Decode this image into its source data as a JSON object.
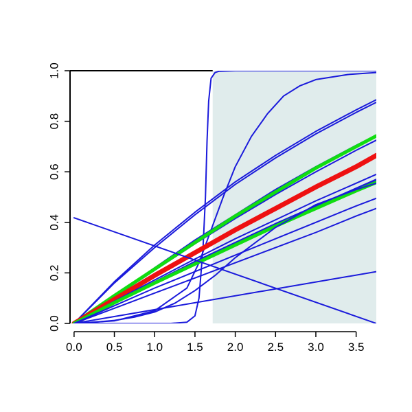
{
  "chart_data": {
    "type": "line",
    "title": "",
    "xlabel": "",
    "ylabel": "",
    "xlim": [
      -0.05,
      3.75
    ],
    "ylim": [
      0,
      1
    ],
    "x_ticks": [
      "0.0",
      "0.5",
      "1.0",
      "1.5",
      "2.0",
      "2.5",
      "3.0",
      "3.5"
    ],
    "y_ticks": [
      "0.0",
      "0.2",
      "0.4",
      "0.6",
      "0.8",
      "1.0"
    ],
    "shaded_region": {
      "x_from": 1.72,
      "x_to": 3.75,
      "color": "#e0ecec"
    },
    "colors": {
      "blue": "#1a1adb",
      "red": "#ee1111",
      "green": "#11dd11",
      "axis": "#000000"
    },
    "series": [
      {
        "role": "sigmoid-steep",
        "color": "blue",
        "width": 2,
        "x": [
          0,
          1.2,
          1.4,
          1.5,
          1.55,
          1.6,
          1.63,
          1.65,
          1.67,
          1.7,
          1.75,
          1.8,
          2.0,
          3.75
        ],
        "y": [
          0,
          0,
          0.005,
          0.03,
          0.1,
          0.3,
          0.5,
          0.72,
          0.88,
          0.97,
          0.993,
          0.998,
          1.0,
          1.0
        ]
      },
      {
        "role": "sigmoid-moderate",
        "color": "blue",
        "width": 2,
        "x": [
          0,
          0.5,
          1.0,
          1.4,
          1.55,
          1.7,
          1.85,
          2.0,
          2.2,
          2.4,
          2.6,
          2.8,
          3.0,
          3.4,
          3.75
        ],
        "y": [
          0,
          0.01,
          0.05,
          0.14,
          0.24,
          0.37,
          0.5,
          0.62,
          0.74,
          0.83,
          0.9,
          0.94,
          0.965,
          0.985,
          0.993
        ]
      },
      {
        "role": "concave-upper-1",
        "color": "blue",
        "width": 2,
        "x": [
          0,
          0.5,
          1.0,
          1.5,
          2.0,
          2.5,
          3.0,
          3.5,
          3.75
        ],
        "y": [
          0,
          0.165,
          0.31,
          0.44,
          0.56,
          0.665,
          0.76,
          0.845,
          0.885
        ]
      },
      {
        "role": "concave-upper-2",
        "color": "blue",
        "width": 2,
        "x": [
          0,
          0.5,
          1.0,
          1.5,
          2.0,
          2.5,
          3.0,
          3.5,
          3.75
        ],
        "y": [
          0,
          0.16,
          0.3,
          0.43,
          0.55,
          0.655,
          0.75,
          0.835,
          0.875
        ]
      },
      {
        "role": "mid-blue-1",
        "color": "blue",
        "width": 2,
        "x": [
          0,
          0.5,
          1.0,
          1.5,
          2.0,
          2.5,
          3.0,
          3.5,
          3.75
        ],
        "y": [
          0,
          0.11,
          0.22,
          0.33,
          0.43,
          0.53,
          0.62,
          0.705,
          0.745
        ]
      },
      {
        "role": "mid-blue-2",
        "color": "blue",
        "width": 2,
        "x": [
          0,
          0.5,
          1.0,
          1.5,
          2.0,
          2.5,
          3.0,
          3.5,
          3.75
        ],
        "y": [
          0,
          0.105,
          0.21,
          0.315,
          0.415,
          0.51,
          0.6,
          0.685,
          0.725
        ]
      },
      {
        "role": "green-upper",
        "color": "green",
        "width": 5,
        "x": [
          0,
          0.5,
          1.0,
          1.5,
          2.0,
          2.5,
          3.0,
          3.5,
          3.75
        ],
        "y": [
          0,
          0.11,
          0.215,
          0.32,
          0.425,
          0.52,
          0.615,
          0.7,
          0.742
        ]
      },
      {
        "role": "red-mean",
        "color": "red",
        "width": 7,
        "x": [
          0,
          0.5,
          1.0,
          1.5,
          2.0,
          2.5,
          3.0,
          3.5,
          3.75
        ],
        "y": [
          0,
          0.095,
          0.19,
          0.28,
          0.37,
          0.455,
          0.54,
          0.62,
          0.665
        ]
      },
      {
        "role": "lower-blue-1",
        "color": "blue",
        "width": 2,
        "x": [
          0,
          0.5,
          1.0,
          1.5,
          2.0,
          2.5,
          3.0,
          3.5,
          3.75
        ],
        "y": [
          0,
          0.085,
          0.165,
          0.245,
          0.32,
          0.395,
          0.465,
          0.535,
          0.57
        ]
      },
      {
        "role": "lower-blue-2",
        "color": "blue",
        "width": 2,
        "x": [
          0,
          0.5,
          1.0,
          1.5,
          2.0,
          2.5,
          3.0,
          3.5,
          3.75
        ],
        "y": [
          0,
          0.083,
          0.162,
          0.24,
          0.315,
          0.39,
          0.46,
          0.53,
          0.565
        ]
      },
      {
        "role": "lower-blue-3",
        "color": "blue",
        "width": 2,
        "x": [
          0,
          0.5,
          1.0,
          1.5,
          2.0,
          2.5,
          3.0,
          3.5,
          3.75
        ],
        "y": [
          0,
          0.088,
          0.172,
          0.255,
          0.335,
          0.41,
          0.485,
          0.555,
          0.59
        ]
      },
      {
        "role": "green-lower",
        "color": "green",
        "width": 5,
        "x": [
          0,
          0.5,
          1.0,
          1.5,
          2.0,
          2.5,
          3.0,
          3.5,
          3.75
        ],
        "y": [
          0,
          0.082,
          0.16,
          0.235,
          0.31,
          0.385,
          0.455,
          0.525,
          0.558
        ]
      },
      {
        "role": "lower-blue-4",
        "color": "blue",
        "width": 2,
        "x": [
          0,
          0.5,
          1.0,
          1.5,
          2.0,
          2.5,
          3.0,
          3.5,
          3.75
        ],
        "y": [
          0,
          0.07,
          0.14,
          0.205,
          0.27,
          0.335,
          0.4,
          0.465,
          0.495
        ]
      },
      {
        "role": "lower-blue-5",
        "color": "blue",
        "width": 2,
        "x": [
          0,
          0.5,
          1.0,
          1.5,
          2.0,
          2.5,
          3.0,
          3.5,
          3.75
        ],
        "y": [
          0,
          0.06,
          0.12,
          0.18,
          0.24,
          0.3,
          0.36,
          0.425,
          0.455
        ]
      },
      {
        "role": "convex-low",
        "color": "blue",
        "width": 2,
        "x": [
          0,
          0.25,
          0.5,
          0.75,
          1.0,
          1.25,
          1.5,
          1.75,
          2.0,
          2.5,
          3.0,
          3.5,
          3.75
        ],
        "y": [
          0,
          0.005,
          0.012,
          0.025,
          0.045,
          0.08,
          0.13,
          0.19,
          0.26,
          0.38,
          0.47,
          0.53,
          0.555
        ]
      },
      {
        "role": "straight-shallow",
        "color": "blue",
        "width": 2,
        "x": [
          0,
          3.75
        ],
        "y": [
          0,
          0.205
        ]
      },
      {
        "role": "straight-decreasing",
        "color": "blue",
        "width": 2,
        "x": [
          0,
          3.75
        ],
        "y": [
          0.418,
          0.0
        ]
      }
    ]
  }
}
